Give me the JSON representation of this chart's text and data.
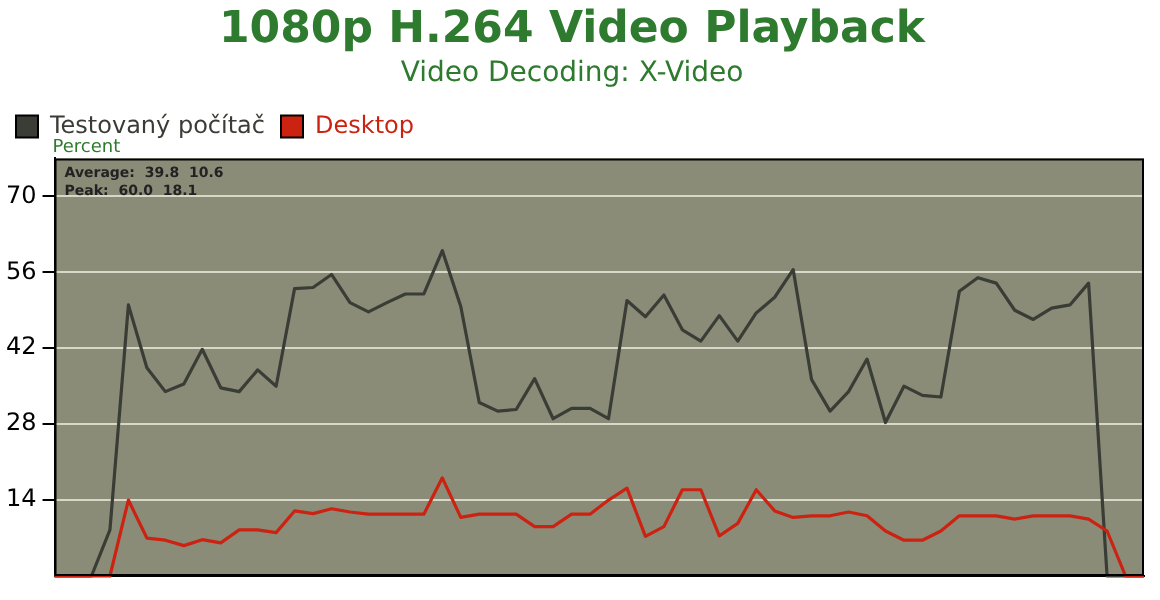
{
  "chart_data": {
    "type": "line",
    "title": "1080p H.264 Video Playback",
    "subtitle": "Video Decoding: X-Video",
    "ylabel": "Percent",
    "annotations": [
      "Average:  39.8  10.6",
      "Peak:  60.0  18.1"
    ],
    "categories": [
      null,
      null,
      null,
      null,
      null,
      null,
      null,
      null,
      null,
      null,
      null,
      null,
      null,
      null,
      null,
      null,
      null,
      null,
      null,
      null,
      null,
      null,
      null,
      null,
      null,
      null,
      null,
      null,
      null,
      null,
      null,
      null,
      null,
      null,
      null,
      null,
      null,
      null,
      null,
      null,
      null,
      null,
      null,
      null,
      null,
      null,
      null,
      null,
      null,
      null,
      null,
      null,
      null,
      null,
      null,
      null,
      null,
      null,
      null,
      null
    ],
    "series": [
      {
        "name": "Testovaný počítač",
        "color": "#3a3d36",
        "values": [
          0,
          0,
          0,
          8.5,
          50,
          38.4,
          34,
          35.4,
          41.8,
          34.7,
          34,
          38,
          35,
          53,
          53.2,
          55.6,
          50.4,
          48.7,
          50.4,
          52,
          52,
          60,
          49.7,
          32,
          30.4,
          30.7,
          36.4,
          29,
          30.9,
          30.9,
          29,
          50.8,
          47.8,
          51.8,
          45.4,
          43.3,
          48,
          43.3,
          48.5,
          51.4,
          56.5,
          36.2,
          30.4,
          34,
          40,
          28.3,
          35,
          33.3,
          33,
          52.5,
          55,
          54,
          49,
          47.3,
          49.4,
          50,
          54,
          0,
          0,
          0
        ]
      },
      {
        "name": "Desktop",
        "color": "#cc2211",
        "values": [
          0,
          0,
          0,
          0,
          14,
          7,
          6.6,
          5.6,
          6.7,
          6.1,
          8.5,
          8.5,
          8,
          12,
          11.5,
          12.4,
          11.8,
          11.4,
          11.4,
          11.4,
          11.4,
          18.1,
          10.8,
          11.4,
          11.4,
          11.4,
          9.1,
          9.1,
          11.4,
          11.4,
          14,
          16.2,
          7.3,
          9.1,
          15.9,
          15.9,
          7.4,
          9.7,
          15.9,
          12,
          10.8,
          11.1,
          11.1,
          11.8,
          11.1,
          8.3,
          6.6,
          6.6,
          8.3,
          11.1,
          11.1,
          11.1,
          10.5,
          11.1,
          11.1,
          11.1,
          10.5,
          8.3,
          0,
          0
        ]
      }
    ],
    "ylim": [
      0,
      77
    ],
    "yticks": [
      14,
      28,
      42,
      56,
      70
    ],
    "grid": "y",
    "legend": "top left",
    "tick_labels": "y",
    "marker": "none",
    "line_style": "solid"
  }
}
